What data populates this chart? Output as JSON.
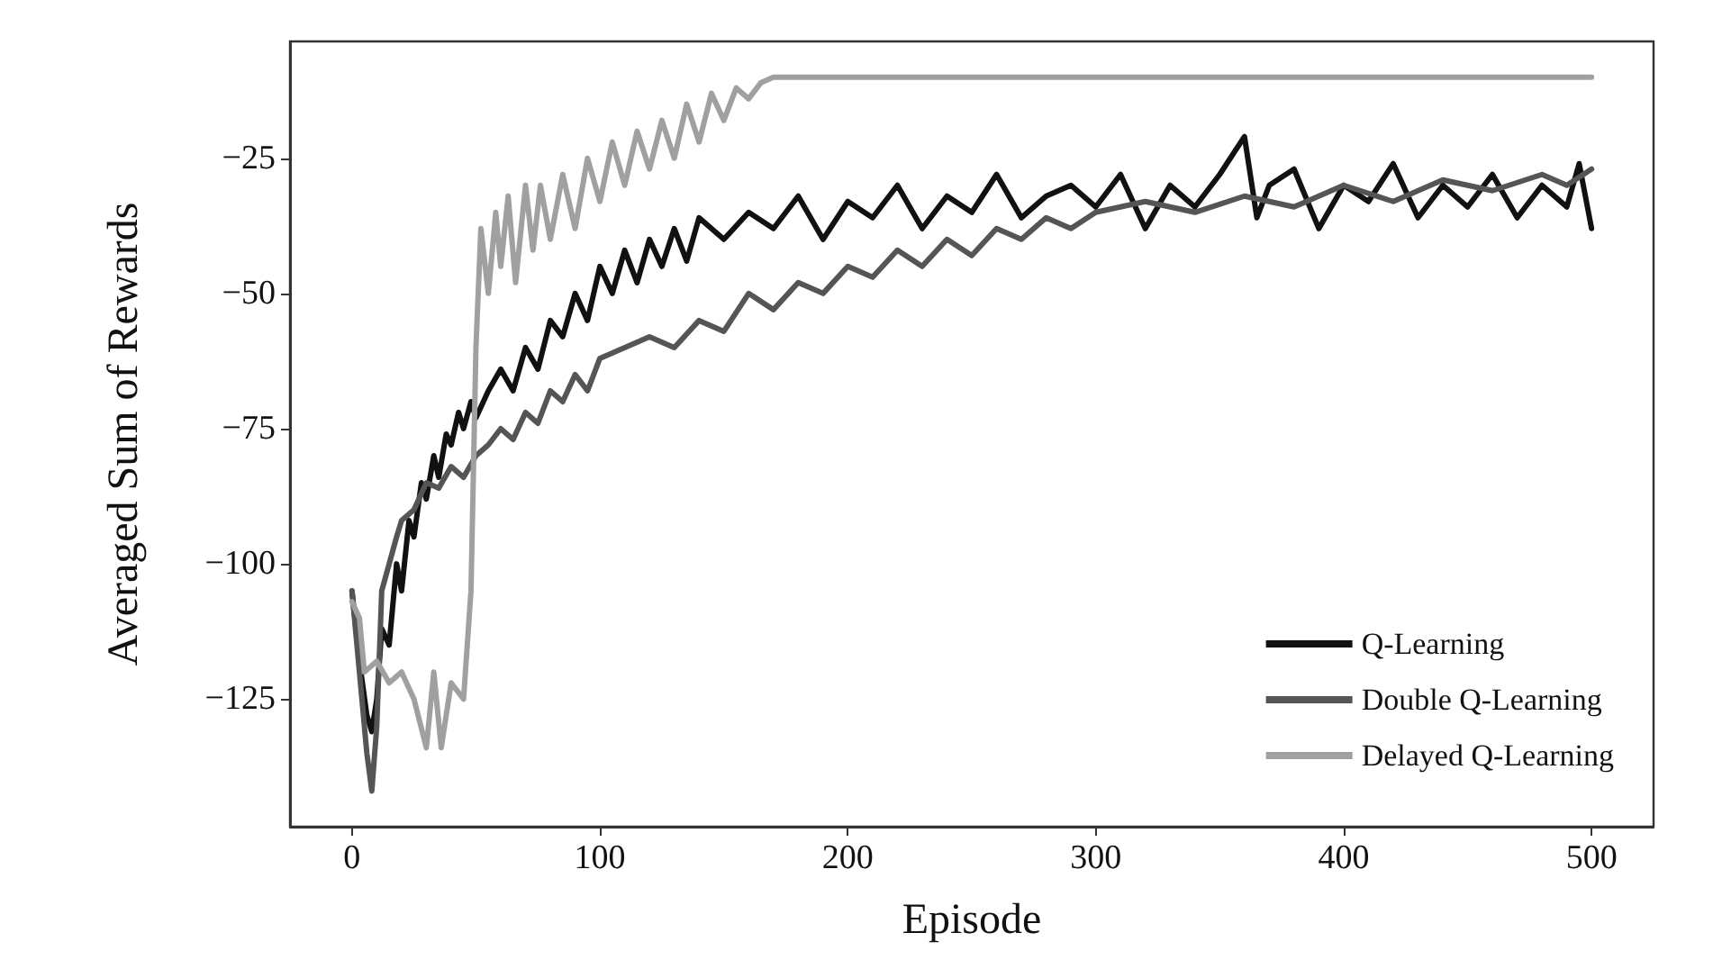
{
  "chart_data": {
    "type": "line",
    "xlabel": "Episode",
    "ylabel": "Averaged Sum of Rewards",
    "xlim": [
      -25,
      525
    ],
    "ylim": [
      -148.6,
      -3.4
    ],
    "xticks": [
      0,
      100,
      200,
      300,
      400,
      500
    ],
    "yticks": [
      -125,
      -100,
      -75,
      -50,
      -25
    ],
    "grid": false,
    "legend": "bottom right",
    "marker": "none",
    "line_style": "solid",
    "series": [
      {
        "name": "Q-Learning",
        "color": "#111111",
        "x": [
          0,
          3,
          6,
          8,
          10,
          12,
          15,
          18,
          20,
          23,
          25,
          28,
          30,
          33,
          35,
          38,
          40,
          43,
          45,
          48,
          50,
          55,
          60,
          65,
          70,
          75,
          80,
          85,
          90,
          95,
          100,
          105,
          110,
          115,
          120,
          125,
          130,
          135,
          140,
          150,
          160,
          170,
          180,
          190,
          200,
          210,
          220,
          230,
          240,
          250,
          260,
          270,
          280,
          290,
          300,
          310,
          320,
          330,
          340,
          350,
          360,
          365,
          370,
          380,
          390,
          400,
          410,
          420,
          430,
          440,
          450,
          460,
          470,
          480,
          490,
          495,
          500
        ],
        "values": [
          -105,
          -118,
          -128,
          -131,
          -125,
          -112,
          -115,
          -100,
          -105,
          -92,
          -95,
          -85,
          -88,
          -80,
          -84,
          -76,
          -78,
          -72,
          -75,
          -70,
          -73,
          -68,
          -64,
          -68,
          -60,
          -64,
          -55,
          -58,
          -50,
          -55,
          -45,
          -50,
          -42,
          -48,
          -40,
          -45,
          -38,
          -44,
          -36,
          -40,
          -35,
          -38,
          -32,
          -40,
          -33,
          -36,
          -30,
          -38,
          -32,
          -35,
          -28,
          -36,
          -32,
          -30,
          -34,
          -28,
          -38,
          -30,
          -34,
          -28,
          -21,
          -36,
          -30,
          -27,
          -38,
          -30,
          -33,
          -26,
          -36,
          -30,
          -34,
          -28,
          -36,
          -30,
          -34,
          -26,
          -38
        ]
      },
      {
        "name": "Double Q-Learning",
        "color": "#555555",
        "x": [
          0,
          3,
          6,
          8,
          10,
          12,
          15,
          18,
          20,
          25,
          30,
          35,
          40,
          45,
          50,
          55,
          60,
          65,
          70,
          75,
          80,
          85,
          90,
          95,
          100,
          110,
          120,
          130,
          140,
          150,
          160,
          170,
          180,
          190,
          200,
          210,
          220,
          230,
          240,
          250,
          260,
          270,
          280,
          290,
          300,
          320,
          340,
          360,
          380,
          400,
          420,
          440,
          460,
          480,
          490,
          500
        ],
        "values": [
          -105,
          -120,
          -135,
          -142,
          -130,
          -105,
          -100,
          -95,
          -92,
          -90,
          -85,
          -86,
          -82,
          -84,
          -80,
          -78,
          -75,
          -77,
          -72,
          -74,
          -68,
          -70,
          -65,
          -68,
          -62,
          -60,
          -58,
          -60,
          -55,
          -57,
          -50,
          -53,
          -48,
          -50,
          -45,
          -47,
          -42,
          -45,
          -40,
          -43,
          -38,
          -40,
          -36,
          -38,
          -35,
          -33,
          -35,
          -32,
          -34,
          -30,
          -33,
          -29,
          -31,
          -28,
          -30,
          -27
        ]
      },
      {
        "name": "Delayed Q-Learning",
        "color": "#a0a0a0",
        "x": [
          0,
          3,
          5,
          10,
          15,
          20,
          25,
          30,
          33,
          36,
          40,
          45,
          48,
          50,
          52,
          55,
          58,
          60,
          63,
          66,
          70,
          73,
          76,
          80,
          85,
          90,
          95,
          100,
          105,
          110,
          115,
          120,
          125,
          130,
          135,
          140,
          145,
          150,
          155,
          160,
          165,
          170,
          500
        ],
        "values": [
          -107,
          -110,
          -120,
          -118,
          -122,
          -120,
          -125,
          -134,
          -120,
          -134,
          -122,
          -125,
          -105,
          -60,
          -38,
          -50,
          -35,
          -45,
          -32,
          -48,
          -30,
          -42,
          -30,
          -40,
          -28,
          -38,
          -25,
          -33,
          -22,
          -30,
          -20,
          -27,
          -18,
          -25,
          -15,
          -22,
          -13,
          -18,
          -12,
          -14,
          -11,
          -10,
          -10
        ]
      }
    ]
  }
}
